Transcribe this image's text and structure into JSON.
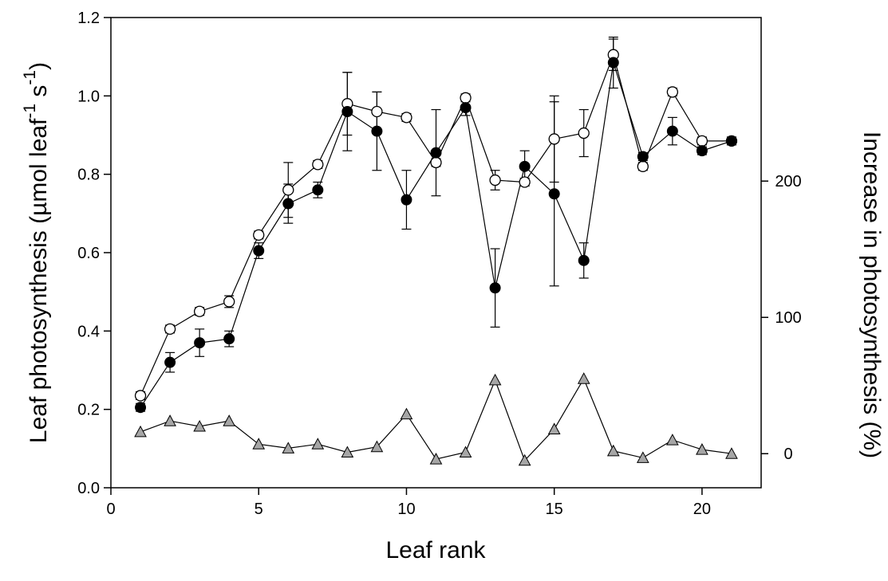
{
  "chart_data": {
    "type": "scatter",
    "xlabel": "Leaf rank",
    "ylabel": "Leaf photosynthesis (µmol leaf",
    "ylabel_sup1": "-1",
    "ylabel_mid": " s",
    "ylabel_sup2": "-1",
    "ylabel_end": ")",
    "y2label": "Increase in photosynthesis (%)",
    "xlim": [
      0,
      22
    ],
    "ylim": [
      0,
      1.2
    ],
    "y2lim": [
      -25,
      320
    ],
    "xticks": [
      "0",
      "5",
      "10",
      "15",
      "20"
    ],
    "yticks": [
      "0.0",
      "0.2",
      "0.4",
      "0.6",
      "0.8",
      "1.0",
      "1.2"
    ],
    "y2ticks": [
      "0",
      "100",
      "200"
    ],
    "x": [
      1,
      2,
      3,
      4,
      5,
      6,
      7,
      8,
      9,
      10,
      11,
      12,
      13,
      14,
      15,
      16,
      17,
      18,
      19,
      20,
      21
    ],
    "series": [
      {
        "marker": "open-circle",
        "axis": "left",
        "values": [
          0.235,
          0.405,
          0.45,
          0.475,
          0.645,
          0.76,
          0.825,
          0.98,
          0.96,
          0.945,
          0.83,
          0.995,
          0.785,
          0.78,
          0.89,
          0.905,
          1.105,
          0.82,
          1.01,
          0.885,
          0.885
        ],
        "errors": [
          0.01,
          0.01,
          0.01,
          0.015,
          0.01,
          0.07,
          0.01,
          0.08,
          0.05,
          0.01,
          0.01,
          0.01,
          0.025,
          0.01,
          0.11,
          0.06,
          0.04,
          0.01,
          0.01,
          0.01,
          0.01
        ]
      },
      {
        "marker": "filled-circle",
        "axis": "left",
        "values": [
          0.205,
          0.32,
          0.37,
          0.38,
          0.605,
          0.725,
          0.76,
          0.96,
          0.91,
          0.735,
          0.855,
          0.97,
          0.51,
          0.82,
          0.75,
          0.58,
          1.085,
          0.845,
          0.91,
          0.86,
          0.885
        ],
        "errors": [
          0.01,
          0.025,
          0.035,
          0.02,
          0.02,
          0.05,
          0.02,
          0.1,
          0.1,
          0.075,
          0.11,
          0.02,
          0.1,
          0.04,
          0.235,
          0.045,
          0.065,
          0.01,
          0.035,
          0.01,
          0.01
        ]
      },
      {
        "marker": "gray-triangle",
        "axis": "right",
        "values": [
          16,
          24,
          20,
          24,
          7,
          4,
          7,
          1,
          5,
          29,
          -4,
          1,
          54,
          -5,
          18,
          55,
          2,
          -3,
          10,
          3,
          0
        ]
      }
    ]
  }
}
